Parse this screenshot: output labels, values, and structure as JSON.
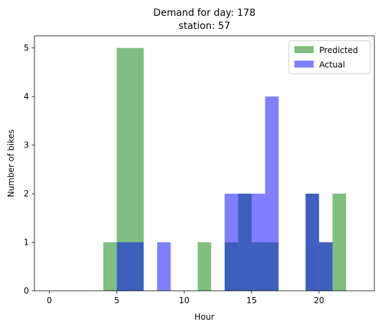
{
  "chart_data": {
    "type": "bar",
    "histogram": true,
    "title_lines": [
      "Demand for day: 178",
      "station: 57"
    ],
    "xlabel": "Hour",
    "ylabel": "Number of bikes",
    "xlim": [
      -1.1,
      24.1
    ],
    "ylim": [
      0,
      5.25
    ],
    "xticks": [
      0,
      5,
      10,
      15,
      20
    ],
    "yticks": [
      0,
      1,
      2,
      3,
      4,
      5
    ],
    "grid": false,
    "legend_position": "top-right",
    "series": [
      {
        "name": "Predicted",
        "color": "#008000",
        "opacity": 0.5,
        "bins": [
          {
            "x0": 4,
            "x1": 5,
            "value": 1
          },
          {
            "x0": 5,
            "x1": 7,
            "value": 5
          },
          {
            "x0": 11,
            "x1": 12,
            "value": 1
          },
          {
            "x0": 13,
            "x1": 14,
            "value": 1
          },
          {
            "x0": 14,
            "x1": 15,
            "value": 2
          },
          {
            "x0": 15,
            "x1": 17,
            "value": 1
          },
          {
            "x0": 19,
            "x1": 20,
            "value": 2
          },
          {
            "x0": 20,
            "x1": 21,
            "value": 1
          },
          {
            "x0": 21,
            "x1": 22,
            "value": 2
          }
        ]
      },
      {
        "name": "Actual",
        "color": "#0000ff",
        "opacity": 0.5,
        "bins": [
          {
            "x0": 5,
            "x1": 7,
            "value": 1
          },
          {
            "x0": 8,
            "x1": 9,
            "value": 1
          },
          {
            "x0": 13,
            "x1": 14,
            "value": 2
          },
          {
            "x0": 14,
            "x1": 15,
            "value": 2
          },
          {
            "x0": 15,
            "x1": 16,
            "value": 2
          },
          {
            "x0": 16,
            "x1": 17,
            "value": 4
          },
          {
            "x0": 19,
            "x1": 20,
            "value": 2
          },
          {
            "x0": 20,
            "x1": 21,
            "value": 1
          }
        ]
      }
    ]
  }
}
